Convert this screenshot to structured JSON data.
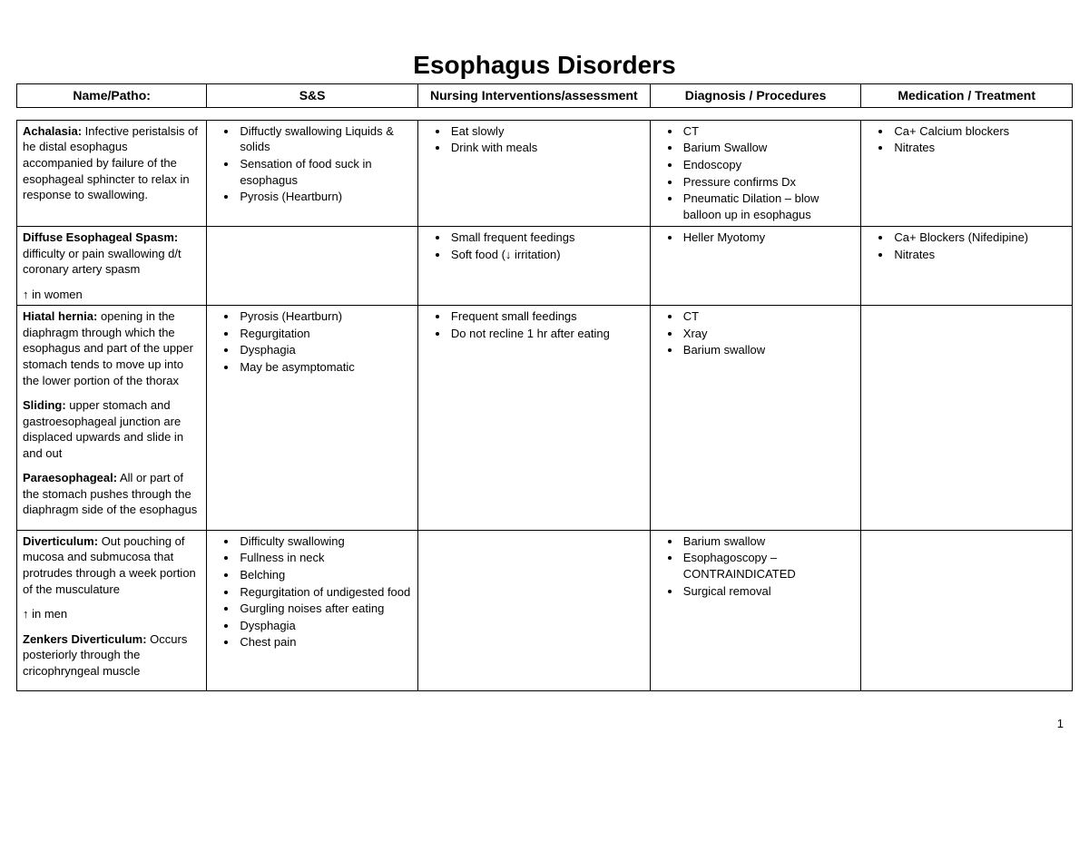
{
  "title": "Esophagus Disorders",
  "page_number": "1",
  "columns": [
    "Name/Patho:",
    "S&S",
    "Nursing Interventions/assessment",
    "Diagnosis / Procedures",
    "Medication / Treatment"
  ],
  "col_widths_pct": [
    18,
    20,
    22,
    20,
    20
  ],
  "rows": [
    {
      "patho": [
        {
          "term": "Achalasia:",
          "desc": " Infective peristalsis of he distal esophagus accompanied by failure of the esophageal sphincter to relax in response to swallowing."
        }
      ],
      "ss": [
        "Diffuctly swallowing Liquids & solids",
        "Sensation of food suck in esophagus",
        "Pyrosis (Heartburn)"
      ],
      "nursing": [
        "Eat slowly",
        "Drink with meals"
      ],
      "dx": [
        "CT",
        "Barium Swallow",
        "Endoscopy",
        "Pressure confirms Dx",
        "Pneumatic Dilation – blow balloon up in esophagus"
      ],
      "med": [
        "Ca+ Calcium blockers",
        "Nitrates"
      ]
    },
    {
      "patho": [
        {
          "term": "Diffuse Esophageal Spasm:",
          "desc": " difficulty or pain swallowing d/t coronary artery spasm"
        },
        {
          "term": "",
          "desc": "↑ in women"
        }
      ],
      "ss": [],
      "nursing": [
        "Small frequent feedings",
        "Soft food (↓ irritation)"
      ],
      "dx": [
        "Heller Myotomy"
      ],
      "med": [
        "Ca+ Blockers (Nifedipine)",
        "Nitrates"
      ]
    },
    {
      "patho": [
        {
          "term": "Hiatal hernia:",
          "desc": " opening in the diaphragm through which the esophagus and part of the upper stomach tends to move up into the lower portion of the thorax"
        },
        {
          "term": "Sliding:",
          "desc": " upper stomach and gastroesophageal junction are displaced upwards and slide in and out"
        },
        {
          "term": "Paraesophageal:",
          "desc": " All or part of the stomach pushes through the diaphragm side of the esophagus"
        },
        {
          "term": "",
          "desc": " "
        }
      ],
      "ss": [
        "Pyrosis (Heartburn)",
        "Regurgitation",
        "Dysphagia",
        "May be asymptomatic"
      ],
      "nursing": [
        "Frequent small feedings",
        "Do not recline 1 hr after eating"
      ],
      "dx": [
        "CT",
        "Xray",
        "Barium swallow"
      ],
      "med": []
    },
    {
      "patho": [
        {
          "term": "Diverticulum:",
          "desc": " Out pouching of mucosa and submucosa that protrudes through a week portion of the musculature"
        },
        {
          "term": "",
          "desc": "↑ in men"
        },
        {
          "term": "Zenkers Diverticulum:",
          "desc": " Occurs posteriorly through the cricophryngeal muscle"
        },
        {
          "term": "",
          "desc": " "
        }
      ],
      "ss": [
        "Difficulty swallowing",
        "Fullness in neck",
        "Belching",
        "Regurgitation of undigested food",
        "Gurgling noises after eating",
        "Dysphagia",
        "Chest pain"
      ],
      "nursing": [],
      "dx": [
        "Barium swallow",
        "Esophagoscopy – CONTRAINDICATED",
        "Surgical removal"
      ],
      "med": []
    }
  ]
}
